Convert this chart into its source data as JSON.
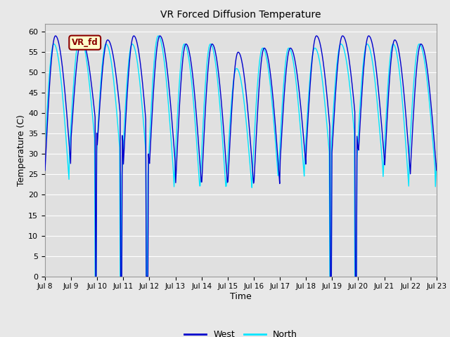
{
  "title": "VR Forced Diffusion Temperature",
  "xlabel": "Time",
  "ylabel": "Temperature (C)",
  "ylim": [
    0,
    62
  ],
  "yticks": [
    0,
    5,
    10,
    15,
    20,
    25,
    30,
    35,
    40,
    45,
    50,
    55,
    60
  ],
  "xtick_labels": [
    "Jul 8",
    "Jul 9",
    "Jul 10",
    "Jul 11",
    "Jul 12",
    "Jul 13",
    "Jul 14",
    "Jul 15",
    "Jul 16",
    "Jul 17",
    "Jul 18",
    "Jul 19",
    "Jul 20",
    "Jul 21",
    "Jul 22",
    "Jul 23"
  ],
  "west_color": "#0000cd",
  "north_color": "#00e5ff",
  "annotation_text": "VR_fd",
  "annotation_bg": "#ffffcc",
  "annotation_border": "#8b0000",
  "annotation_text_color": "#8b0000",
  "fig_facecolor": "#e8e8e8",
  "axes_facecolor": "#e0e0e0",
  "grid_color": "#ffffff",
  "legend_west": "West",
  "legend_north": "North",
  "n_days": 15,
  "samples_per_day": 48
}
